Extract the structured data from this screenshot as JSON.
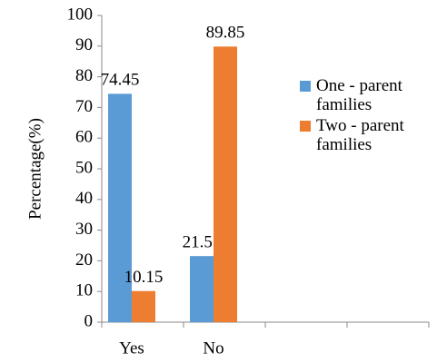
{
  "chart_data": {
    "type": "bar",
    "y_label": "Percentage(%)",
    "categories": [
      "Yes",
      "No",
      null,
      null
    ],
    "series": [
      {
        "name": "One - parent families",
        "color": "#5b9bd5",
        "values": [
          74.45,
          21.55,
          null,
          null
        ]
      },
      {
        "name": "Two - parent families",
        "color": "#ed7d31",
        "values": [
          10.15,
          89.85,
          null,
          null
        ]
      }
    ],
    "ylim": [
      0,
      100
    ],
    "yticks": [
      0,
      10,
      20,
      30,
      40,
      50,
      60,
      70,
      80,
      90,
      100
    ],
    "grid": false,
    "legend": "right"
  }
}
